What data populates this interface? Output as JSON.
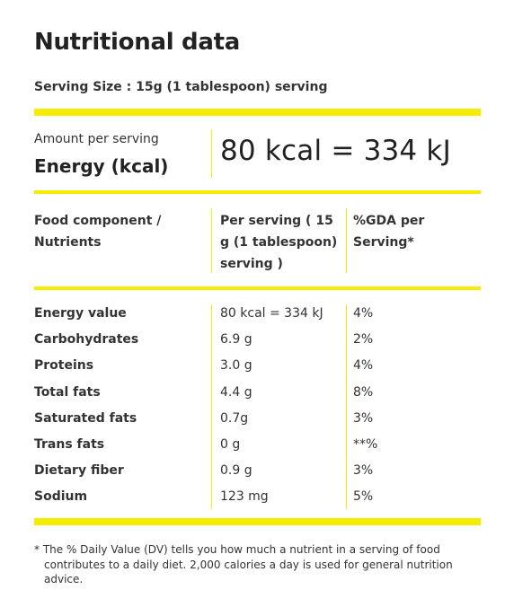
{
  "title": "Nutritional data",
  "serving_size": "Serving Size : 15g (1 tablespoon) serving",
  "energy_box": {
    "amount_label": "Amount per serving",
    "energy_label": "Energy (kcal)",
    "energy_value": "80 kcal = 334 kJ"
  },
  "table": {
    "headers": {
      "component": "Food component / Nutrients",
      "per_serving": "Per serving ( 15 g (1 tablespoon) serving )",
      "gda": "%GDA per Serving*"
    },
    "rows": [
      {
        "name": "Energy value",
        "per": "80 kcal = 334 kJ",
        "gda": "4%"
      },
      {
        "name": "Carbohydrates",
        "per": "6.9 g",
        "gda": "2%"
      },
      {
        "name": "Proteins",
        "per": "3.0 g",
        "gda": "4%"
      },
      {
        "name": "Total fats",
        "per": "4.4 g",
        "gda": "8%"
      },
      {
        "name": "Saturated fats",
        "per": "0.7g",
        "gda": "3%"
      },
      {
        "name": "Trans fats",
        "per": "0 g",
        "gda": "**%"
      },
      {
        "name": "Dietary fiber",
        "per": "0.9 g",
        "gda": "3%"
      },
      {
        "name": "Sodium",
        "per": "123 mg",
        "gda": "5%"
      }
    ]
  },
  "footnote": "* The % Daily Value (DV) tells you how much a nutrient in a serving of food contributes to a daily diet. 2,000 calories a day is used for general nutrition advice.",
  "colors": {
    "accent": "#f5ec00",
    "text": "#222222"
  }
}
